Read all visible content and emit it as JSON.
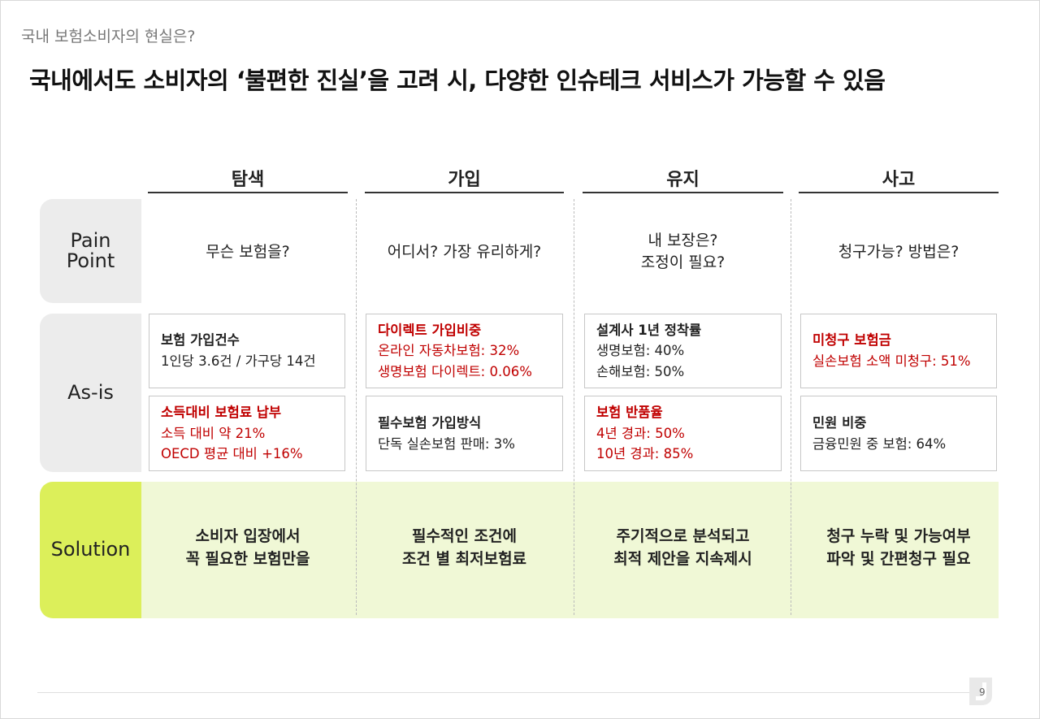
{
  "header": {
    "subtitle": "국내 보험소비자의 현실은?",
    "title": "국내에서도 소비자의 ‘불편한  진실’을 고려 시, 다양한 인슈테크 서비스가 가능할 수 있음"
  },
  "columns": [
    "탐색",
    "가입",
    "유지",
    "사고"
  ],
  "row_labels": {
    "pain_line1": "Pain",
    "pain_line2": "Point",
    "asis": "As-is",
    "solution": "Solution"
  },
  "pain_points": [
    {
      "line1": "무슨 보험을?",
      "line2": ""
    },
    {
      "line1": "어디서?  가장 유리하게?",
      "line2": ""
    },
    {
      "line1": "내 보장은?",
      "line2": "조정이 필요?"
    },
    {
      "line1": "청구가능?  방법은?",
      "line2": ""
    }
  ],
  "asis": [
    {
      "top": {
        "title": "보험 가입건수",
        "lines": [
          "1인당 3.6건 / 가구당 14건"
        ]
      },
      "bottom": {
        "title": "소득대비 보험료 납부",
        "lines": [
          "소득 대비 약 21%",
          "OECD 평균 대비 +16%"
        ]
      }
    },
    {
      "top": {
        "title": "다이렉트 가입비중",
        "lines": [
          "온라인 자동차보험: 32%",
          "생명보험 다이렉트: 0.06%"
        ]
      },
      "bottom": {
        "title": "필수보험 가입방식",
        "lines": [
          "단독 실손보험 판매: 3%"
        ]
      }
    },
    {
      "top": {
        "title": "설계사 1년 정착률",
        "lines": [
          "생명보험: 40%",
          "손해보험: 50%"
        ]
      },
      "bottom": {
        "title": "보험 반품율",
        "lines": [
          "4년 경과: 50%",
          "10년 경과: 85%"
        ]
      }
    },
    {
      "top": {
        "title": "미청구 보험금",
        "lines": [
          "실손보험 소액 미청구: 51%"
        ]
      },
      "bottom": {
        "title": "민원 비중",
        "lines": [
          "금융민원 중 보험: 64%"
        ]
      }
    }
  ],
  "solutions": [
    {
      "line1": "소비자 입장에서",
      "line2": "꼭 필요한 보험만을"
    },
    {
      "line1": "필수적인 조건에",
      "line2": "조건 별 최저보험료"
    },
    {
      "line1": "주기적으로 분석되고",
      "line2": "최적 제안을 지속제시"
    },
    {
      "line1": "청구 누락 및 가능여부",
      "line2": "파악 및 간편청구 필요"
    }
  ],
  "footer": {
    "page_number": "9"
  },
  "colors": {
    "highlight_red": "#c00000",
    "solution_green": "#dcef5a",
    "solution_band": "#f0f8d6"
  }
}
